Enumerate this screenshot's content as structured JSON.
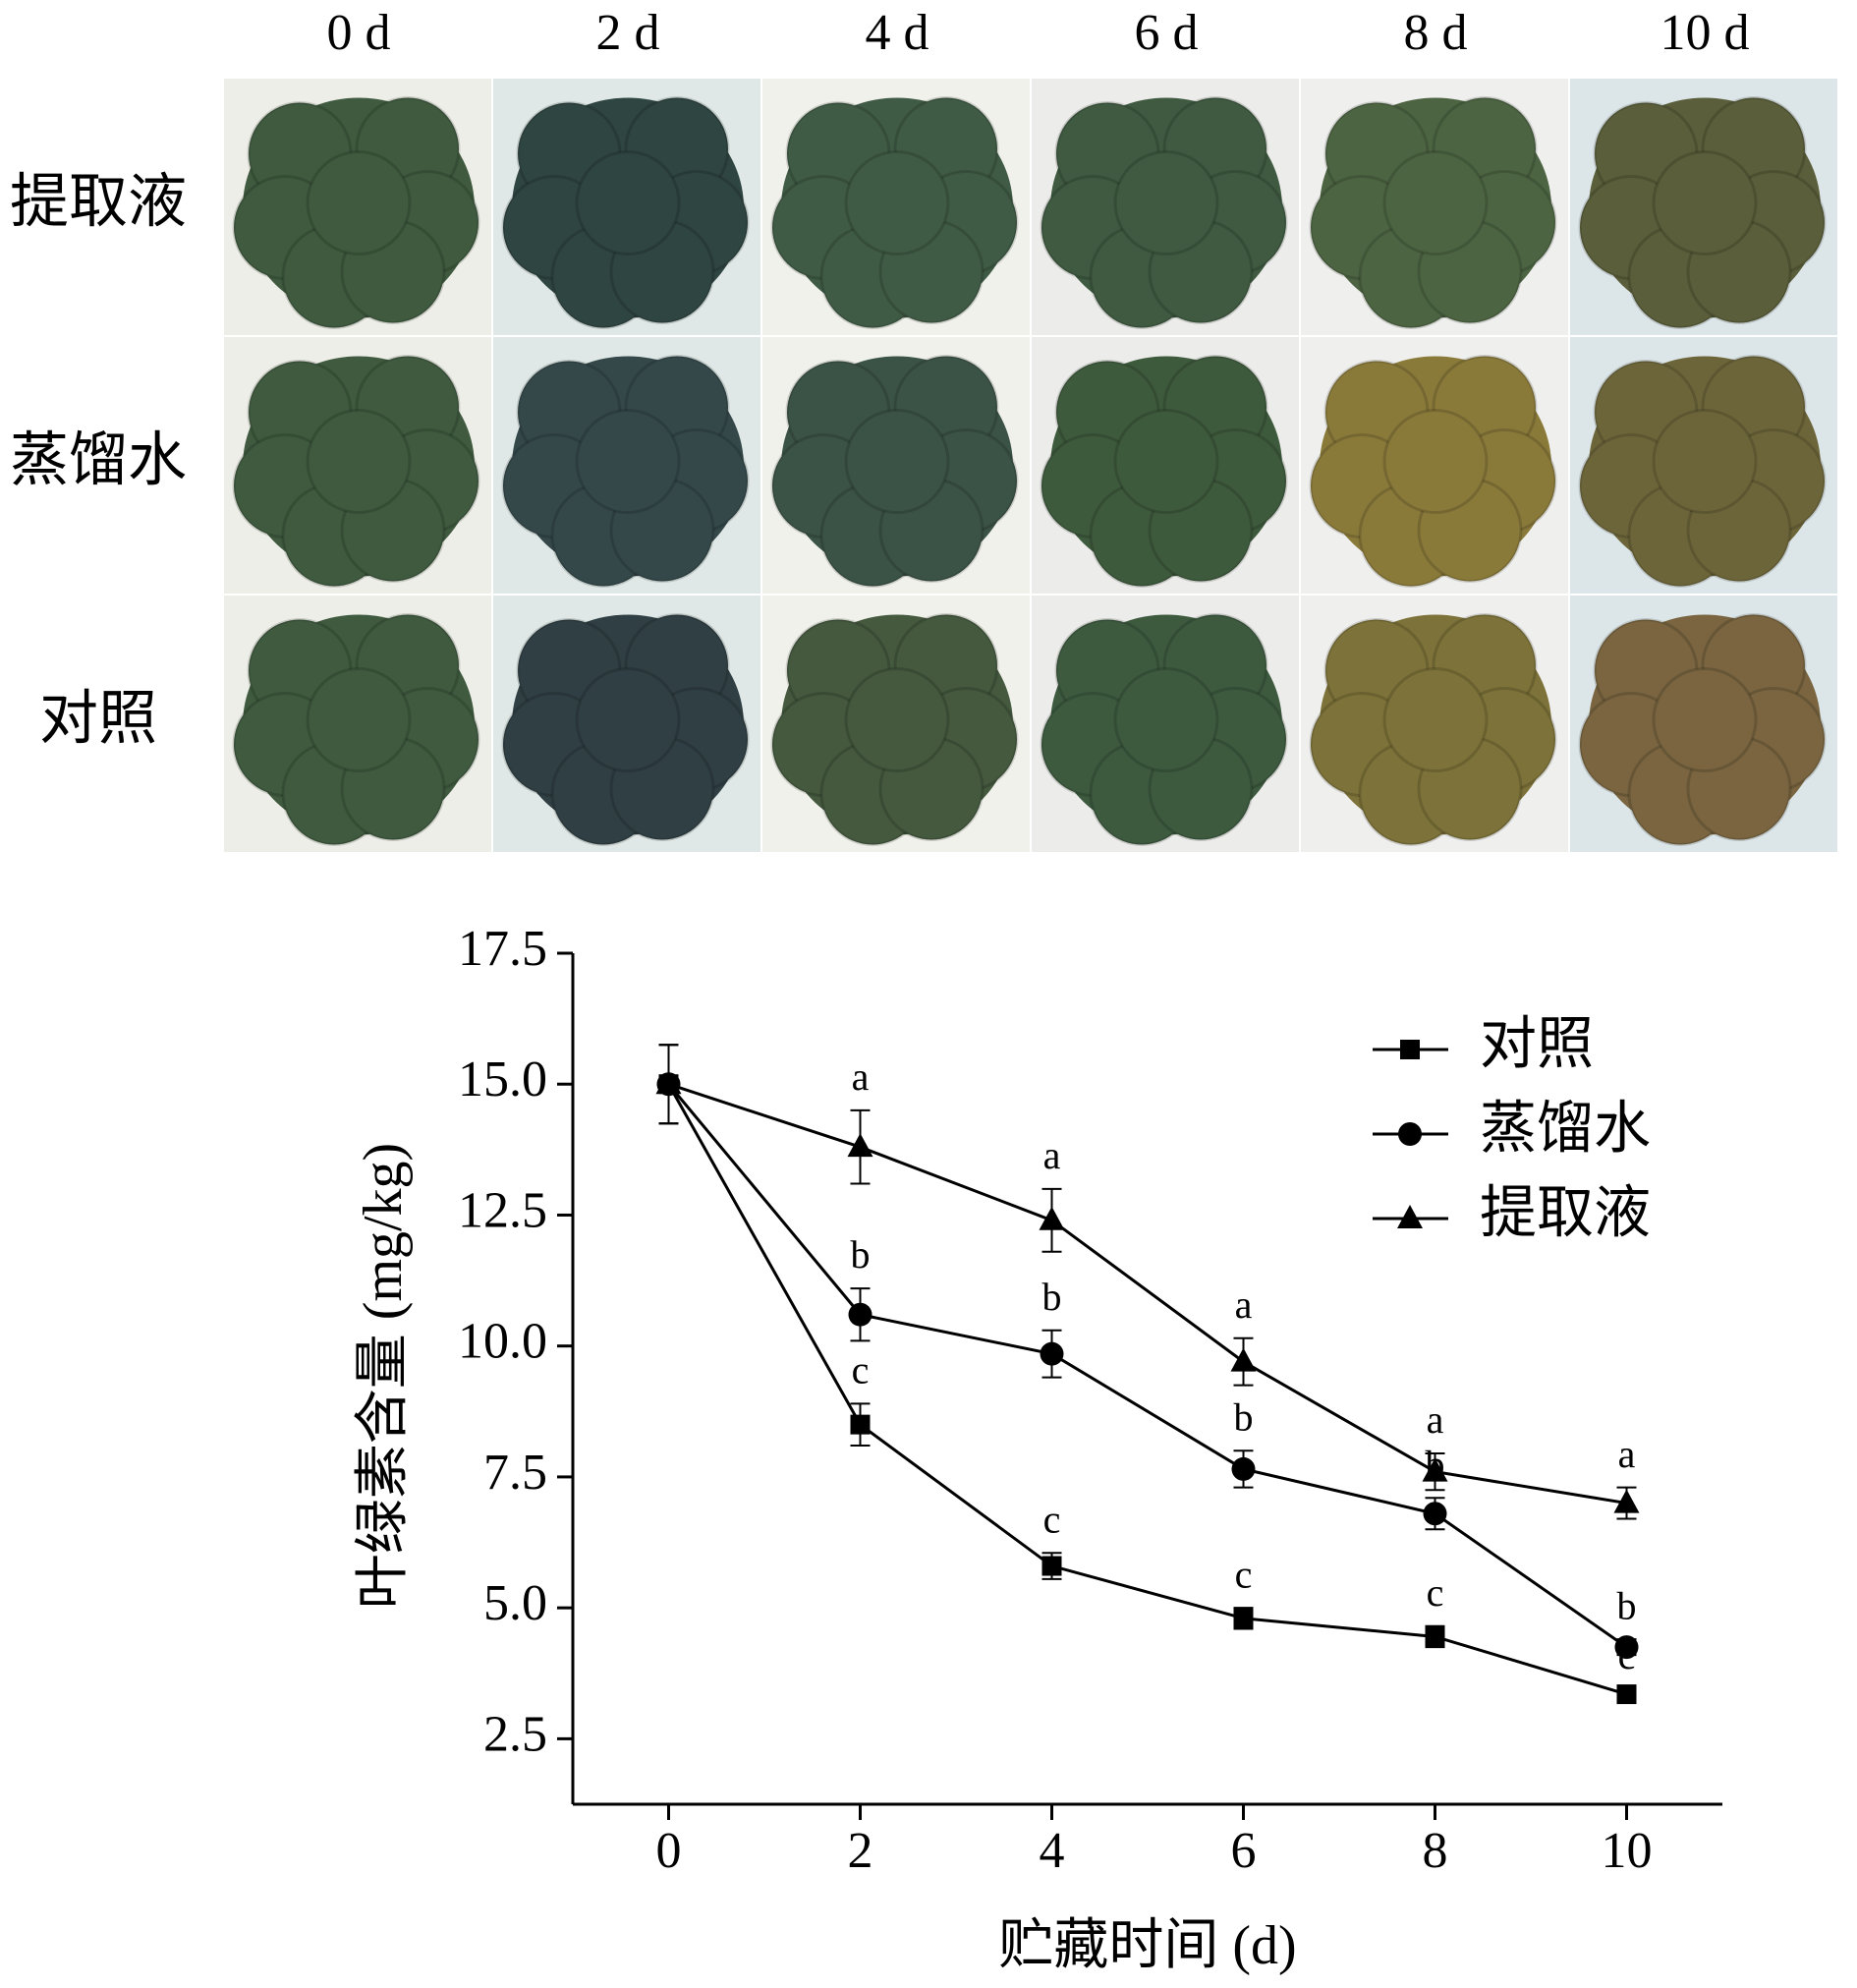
{
  "photo_grid": {
    "columns": [
      "0 d",
      "2 d",
      "4 d",
      "6 d",
      "8 d",
      "10 d"
    ],
    "rows": [
      "提取液",
      "蒸馏水",
      "对照"
    ]
  },
  "chart_data": {
    "type": "line",
    "x_label": "贮藏时间 (d)",
    "y_label": "叶绿素含量 (mg/kg)",
    "x": [
      0,
      2,
      4,
      6,
      8,
      10
    ],
    "xlim": [
      -1,
      11
    ],
    "xticks": [
      0,
      2,
      4,
      6,
      8,
      10
    ],
    "ylim": [
      1.25,
      17.5
    ],
    "yticks": [
      2.5,
      {
        "value": 5,
        "label": "5.0"
      },
      7.5,
      {
        "value": 10,
        "label": "10.0"
      },
      12.5,
      {
        "value": 15,
        "label": "15.0"
      },
      17.5
    ],
    "legend": "upper right",
    "series": [
      {
        "name": "对照",
        "color": "#000000",
        "marker": "square",
        "values": [
          15.0,
          8.5,
          5.8,
          4.8,
          4.45,
          3.35
        ],
        "errors": [
          0.75,
          0.4,
          0.25,
          0.2,
          0.2,
          0.1
        ],
        "letters": [
          null,
          "c",
          "c",
          "c",
          "c",
          "c"
        ]
      },
      {
        "name": "蒸馏水",
        "color": "#000000",
        "marker": "circle",
        "values": [
          15.0,
          10.6,
          9.85,
          7.65,
          6.8,
          4.25
        ],
        "errors": [
          0.75,
          0.5,
          0.45,
          0.35,
          0.3,
          0.15
        ],
        "letters": [
          null,
          "b",
          "b",
          "b",
          "b",
          "b"
        ]
      },
      {
        "name": "提取液",
        "color": "#000000",
        "marker": "triangle",
        "values": [
          15.0,
          13.8,
          12.4,
          9.7,
          7.6,
          7.0
        ],
        "errors": [
          0.75,
          0.7,
          0.6,
          0.45,
          0.35,
          0.3
        ],
        "letters": [
          null,
          "a",
          "a",
          "a",
          "a",
          "a"
        ]
      }
    ]
  }
}
